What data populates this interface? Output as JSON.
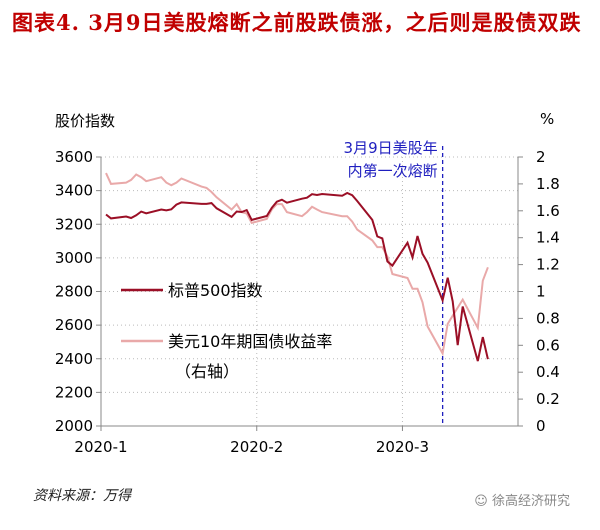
{
  "title": "图表4. 3月9日美股熔断之前股跌债涨，之后则是股债双跌",
  "source": "资料来源：万得",
  "watermark": "徐高经济研究",
  "chart_data": {
    "type": "line",
    "title": "图表4. 3月9日美股熔断之前股跌债涨，之后则是股债双跌",
    "ylabel_left": "股价指数",
    "ylabel_right": "%",
    "ylim_left": [
      2000,
      3600
    ],
    "ylim_right": [
      0,
      2
    ],
    "yticks_left": [
      "2000",
      "2200",
      "2400",
      "2600",
      "2800",
      "3000",
      "3200",
      "3400",
      "3600"
    ],
    "yticks_right": [
      "0",
      "0.2",
      "0.4",
      "0.6",
      "0.8",
      "1",
      "1.2",
      "1.4",
      "1.6",
      "1.8",
      "2"
    ],
    "xticks": [
      "2020-1",
      "2020-2",
      "2020-3"
    ],
    "xtick_dates": [
      "2020-01-01",
      "2020-02-01",
      "2020-03-01"
    ],
    "xlim": [
      "2020-01-01",
      "2020-03-24"
    ],
    "grid": "dotted",
    "legend_placement": "center-left",
    "annotation": {
      "date": "2020-03-09",
      "lines": [
        "3月9日美股年",
        "内第一次熔断"
      ],
      "color": "#1f1fbf"
    },
    "dates": [
      "2020-01-02",
      "2020-01-03",
      "2020-01-06",
      "2020-01-07",
      "2020-01-08",
      "2020-01-09",
      "2020-01-10",
      "2020-01-13",
      "2020-01-14",
      "2020-01-15",
      "2020-01-16",
      "2020-01-17",
      "2020-01-21",
      "2020-01-22",
      "2020-01-23",
      "2020-01-24",
      "2020-01-27",
      "2020-01-28",
      "2020-01-29",
      "2020-01-30",
      "2020-01-31",
      "2020-02-03",
      "2020-02-04",
      "2020-02-05",
      "2020-02-06",
      "2020-02-07",
      "2020-02-10",
      "2020-02-11",
      "2020-02-12",
      "2020-02-13",
      "2020-02-14",
      "2020-02-18",
      "2020-02-19",
      "2020-02-20",
      "2020-02-21",
      "2020-02-24",
      "2020-02-25",
      "2020-02-26",
      "2020-02-27",
      "2020-02-28",
      "2020-03-02",
      "2020-03-03",
      "2020-03-04",
      "2020-03-05",
      "2020-03-06",
      "2020-03-09",
      "2020-03-10",
      "2020-03-11",
      "2020-03-12",
      "2020-03-13",
      "2020-03-16",
      "2020-03-17",
      "2020-03-18"
    ],
    "series": [
      {
        "name": "标普500指数",
        "axis": "left",
        "color": "#9b0f26",
        "values": [
          3258,
          3235,
          3246,
          3237,
          3253,
          3275,
          3265,
          3288,
          3283,
          3289,
          3317,
          3330,
          3321,
          3321,
          3326,
          3295,
          3244,
          3276,
          3273,
          3284,
          3226,
          3249,
          3298,
          3334,
          3346,
          3328,
          3352,
          3358,
          3379,
          3374,
          3380,
          3370,
          3386,
          3373,
          3338,
          3226,
          3128,
          3116,
          2979,
          2954,
          3090,
          3003,
          3130,
          3024,
          2972,
          2747,
          2882,
          2741,
          2481,
          2711,
          2386,
          2529,
          2398
        ]
      },
      {
        "name": "美元10年期国债收益率",
        "name2": "（右轴）",
        "axis": "right",
        "color": "#e9a9a9",
        "values": [
          1.88,
          1.8,
          1.81,
          1.83,
          1.87,
          1.85,
          1.82,
          1.85,
          1.81,
          1.79,
          1.81,
          1.84,
          1.78,
          1.77,
          1.74,
          1.7,
          1.61,
          1.65,
          1.59,
          1.58,
          1.51,
          1.54,
          1.61,
          1.65,
          1.65,
          1.59,
          1.56,
          1.59,
          1.63,
          1.61,
          1.59,
          1.56,
          1.56,
          1.52,
          1.46,
          1.38,
          1.33,
          1.33,
          1.26,
          1.13,
          1.1,
          1.02,
          1.02,
          0.92,
          0.74,
          0.54,
          0.76,
          0.82,
          0.88,
          0.94,
          0.73,
          1.08,
          1.18
        ]
      }
    ]
  }
}
